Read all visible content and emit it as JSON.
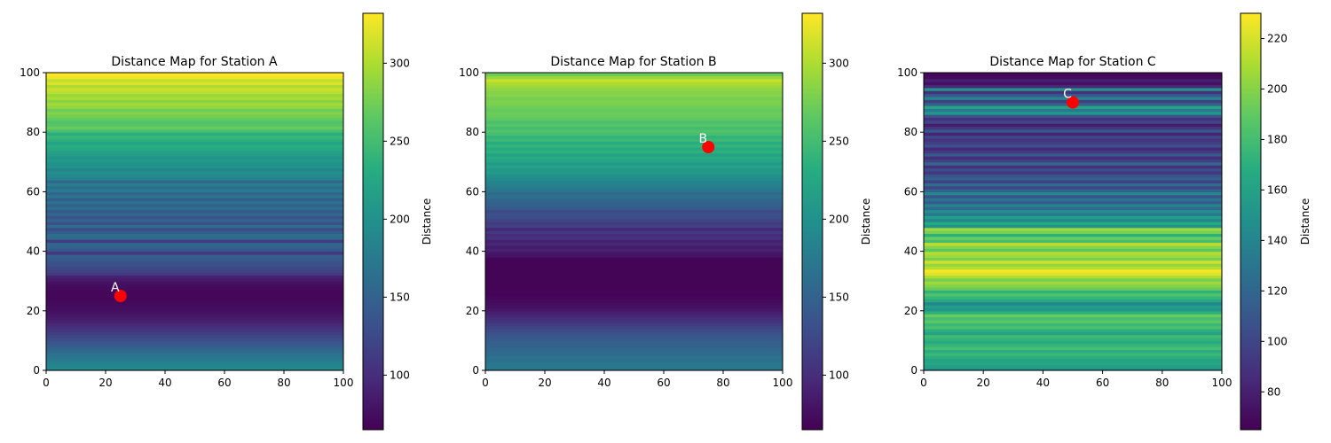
{
  "chart_data": [
    {
      "type": "heatmap",
      "title": "Distance Map for Station A",
      "colorbar_label": "Distance",
      "colormap": "viridis",
      "xlim": [
        0,
        100
      ],
      "ylim": [
        0,
        100
      ],
      "x_ticks": [
        0,
        20,
        40,
        60,
        80,
        100
      ],
      "y_ticks": [
        0,
        20,
        40,
        60,
        80,
        100
      ],
      "clim": [
        65,
        332
      ],
      "cb_ticks": [
        100,
        150,
        200,
        250,
        300
      ],
      "row_values": [
        190,
        188,
        182,
        176,
        170,
        165,
        158,
        150,
        142,
        136,
        128,
        122,
        115,
        108,
        102,
        96,
        90,
        86,
        82,
        78,
        76,
        74,
        72,
        71,
        70,
        70,
        70,
        72,
        74,
        78,
        84,
        90,
        112,
        118,
        124,
        130,
        135,
        140,
        146,
        108,
        138,
        150,
        154,
        112,
        158,
        162,
        144,
        126,
        160,
        130,
        152,
        134,
        156,
        140,
        162,
        148,
        166,
        144,
        170,
        152,
        175,
        162,
        178,
        156,
        184,
        190,
        196,
        186,
        202,
        200,
        210,
        204,
        214,
        218,
        226,
        232,
        222,
        236,
        244,
        232,
        252,
        270,
        262,
        258,
        268,
        276,
        282,
        272,
        288,
        296,
        284,
        300,
        290,
        306,
        312,
        300,
        318,
        308,
        326,
        332
      ],
      "station": {
        "x": 25,
        "y": 25,
        "label": "A"
      }
    },
    {
      "type": "heatmap",
      "title": "Distance Map for Station B",
      "colorbar_label": "Distance",
      "colormap": "viridis",
      "xlim": [
        0,
        100
      ],
      "ylim": [
        0,
        100
      ],
      "x_ticks": [
        0,
        20,
        40,
        60,
        80,
        100
      ],
      "y_ticks": [
        0,
        20,
        40,
        60,
        80,
        100
      ],
      "clim": [
        65,
        332
      ],
      "cb_ticks": [
        100,
        150,
        200,
        250,
        300
      ],
      "row_values": [
        172,
        174,
        170,
        164,
        166,
        160,
        158,
        152,
        150,
        146,
        142,
        138,
        132,
        126,
        120,
        114,
        106,
        100,
        94,
        88,
        82,
        78,
        74,
        72,
        70,
        68,
        68,
        68,
        68,
        68,
        68,
        68,
        68,
        68,
        68,
        68,
        68,
        68,
        78,
        82,
        92,
        86,
        96,
        90,
        104,
        98,
        110,
        94,
        118,
        112,
        122,
        128,
        132,
        126,
        140,
        146,
        150,
        156,
        164,
        158,
        170,
        176,
        182,
        188,
        194,
        200,
        212,
        206,
        218,
        210,
        224,
        230,
        218,
        236,
        228,
        240,
        232,
        246,
        238,
        252,
        258,
        250,
        262,
        254,
        266,
        270,
        272,
        268,
        274,
        278,
        280,
        276,
        284,
        282,
        288,
        294,
        300,
        310,
        290,
        272
      ],
      "station": {
        "x": 75,
        "y": 75,
        "label": "B"
      }
    },
    {
      "type": "heatmap",
      "title": "Distance Map for Station C",
      "colorbar_label": "Distance",
      "colormap": "viridis",
      "xlim": [
        0,
        100
      ],
      "ylim": [
        0,
        100
      ],
      "x_ticks": [
        0,
        20,
        40,
        60,
        80,
        100
      ],
      "y_ticks": [
        0,
        20,
        40,
        60,
        80,
        100
      ],
      "clim": [
        65,
        230
      ],
      "cb_ticks": [
        80,
        100,
        120,
        140,
        160,
        180,
        200,
        220
      ],
      "row_values": [
        152,
        158,
        164,
        160,
        170,
        176,
        168,
        180,
        174,
        166,
        172,
        178,
        160,
        170,
        182,
        176,
        188,
        180,
        192,
        170,
        150,
        158,
        140,
        166,
        174,
        184,
        172,
        192,
        200,
        206,
        196,
        210,
        222,
        228,
        212,
        204,
        218,
        196,
        206,
        212,
        188,
        200,
        214,
        180,
        192,
        170,
        196,
        206,
        150,
        166,
        140,
        158,
        132,
        146,
        122,
        138,
        114,
        128,
        108,
        142,
        118,
        100,
        124,
        96,
        116,
        108,
        92,
        104,
        88,
        120,
        98,
        86,
        112,
        94,
        84,
        106,
        96,
        90,
        102,
        82,
        110,
        92,
        78,
        100,
        88,
        108,
        152,
        132,
        160,
        116,
        96,
        140,
        110,
        88,
        150,
        84,
        72,
        80,
        70,
        68
      ],
      "station": {
        "x": 50,
        "y": 90,
        "label": "C"
      }
    }
  ]
}
